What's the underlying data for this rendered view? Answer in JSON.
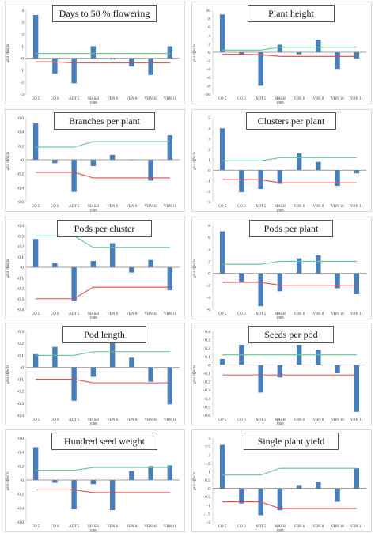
{
  "ylabel": "gca effects",
  "genotypes": [
    "CO 5",
    "CO 6",
    "ADT 5",
    "MASH 1008",
    "VBN 6",
    "VBN 8",
    "VBN 10",
    "VBN 11"
  ],
  "colors": {
    "bar": "#4a7ebb",
    "upper": "#5cc98a",
    "lower": "#e04848",
    "axis": "#7f7f7f"
  },
  "chart_data": [
    {
      "type": "bar",
      "title": "Days to 50 % flowering",
      "ylim": [
        -3,
        4
      ],
      "ticks": [
        4,
        3,
        2,
        1,
        0,
        -1,
        -2,
        -3
      ],
      "categories": [
        "CO 5",
        "CO 6",
        "ADT 5",
        "MASH 1008",
        "VBN 6",
        "VBN 8",
        "VBN 10",
        "VBN 11"
      ],
      "values": [
        3.6,
        -1.3,
        -2.1,
        1.0,
        -0.1,
        -0.7,
        -1.4,
        1.0
      ],
      "upper_line": [
        0.4,
        0.4,
        0.4,
        0.4,
        0.4,
        0.4,
        0.4,
        0.4
      ],
      "lower_line": [
        -0.3,
        -0.3,
        -0.4,
        -0.4,
        -0.4,
        -0.4,
        -0.4,
        -0.4
      ]
    },
    {
      "type": "bar",
      "title": "Plant height",
      "ylim": [
        -10,
        10
      ],
      "ticks": [
        10,
        8,
        6,
        4,
        2,
        0,
        -2,
        -4,
        -6,
        -8,
        -10
      ],
      "categories": [
        "CO 5",
        "CO 6",
        "ADT 5",
        "MASH 1008",
        "VBN 6",
        "VBN 8",
        "VBN 10",
        "VBN 11"
      ],
      "values": [
        9.0,
        -0.5,
        -8.0,
        1.8,
        -0.5,
        3.0,
        -4.0,
        -1.5
      ],
      "upper_line": [
        0.5,
        0.5,
        0.5,
        1.2,
        1.2,
        1.2,
        1.2,
        1.2
      ],
      "lower_line": [
        -0.5,
        -0.5,
        -0.6,
        -1.0,
        -1.0,
        -1.0,
        -1.0,
        -1.0
      ]
    },
    {
      "type": "bar",
      "title": "Branches per plant",
      "ylim": [
        -0.6,
        0.6
      ],
      "ticks": [
        0.6,
        0.4,
        0.2,
        0,
        -0.2,
        -0.4,
        -0.6
      ],
      "categories": [
        "CO 5",
        "CO 6",
        "ADT 5",
        "MASH 1008",
        "VBN 6",
        "VBN 8",
        "VBN 10",
        "VBN 11"
      ],
      "values": [
        0.52,
        -0.05,
        -0.46,
        -0.09,
        0.07,
        0.0,
        -0.3,
        0.35
      ],
      "upper_line": [
        0.18,
        0.18,
        0.18,
        0.26,
        0.26,
        0.26,
        0.26,
        0.26
      ],
      "lower_line": [
        -0.18,
        -0.18,
        -0.18,
        -0.26,
        -0.26,
        -0.26,
        -0.26,
        -0.26
      ]
    },
    {
      "type": "bar",
      "title": "Clusters per plant",
      "ylim": [
        -3,
        5
      ],
      "ticks": [
        5,
        4,
        3,
        2,
        1,
        0,
        -1,
        -2,
        -3
      ],
      "categories": [
        "CO 5",
        "CO 6",
        "ADT 5",
        "MASH 1008",
        "VBN 6",
        "VBN 8",
        "VBN 10",
        "VBN 11"
      ],
      "values": [
        4.0,
        -2.1,
        -1.8,
        -1.3,
        1.6,
        0.8,
        -1.5,
        -0.3
      ],
      "upper_line": [
        0.9,
        0.9,
        0.9,
        1.2,
        1.2,
        1.2,
        1.2,
        1.2
      ],
      "lower_line": [
        -0.9,
        -0.9,
        -0.9,
        -1.2,
        -1.2,
        -1.2,
        -1.2,
        -1.2
      ]
    },
    {
      "type": "bar",
      "title": "Pods per cluster",
      "ylim": [
        -0.4,
        0.4
      ],
      "ticks": [
        0.4,
        0.3,
        0.2,
        0.1,
        0,
        -0.1,
        -0.2,
        -0.3,
        -0.4
      ],
      "categories": [
        "CO 5",
        "CO 6",
        "ADT 5",
        "MASH 1008",
        "VBN 6",
        "VBN 8",
        "VBN 10",
        "VBN 11"
      ],
      "values": [
        0.27,
        0.04,
        -0.32,
        0.06,
        0.23,
        -0.05,
        0.07,
        -0.22
      ],
      "upper_line": [
        0.3,
        0.3,
        0.3,
        0.19,
        0.19,
        0.19,
        0.19,
        0.19
      ],
      "lower_line": [
        -0.3,
        -0.3,
        -0.3,
        -0.19,
        -0.19,
        -0.19,
        -0.19,
        -0.19
      ]
    },
    {
      "type": "bar",
      "title": "Pods per plant",
      "ylim": [
        -6,
        8
      ],
      "ticks": [
        8,
        6,
        4,
        2,
        0,
        -2,
        -4,
        -6
      ],
      "categories": [
        "CO 5",
        "CO 6",
        "ADT 5",
        "MASH 1008",
        "VBN 6",
        "VBN 8",
        "VBN 10",
        "VBN 11"
      ],
      "values": [
        7.0,
        -1.5,
        -5.5,
        -3.0,
        2.5,
        3.0,
        -2.5,
        -3.5
      ],
      "upper_line": [
        1.5,
        1.5,
        1.5,
        2.0,
        2.0,
        2.0,
        2.0,
        2.0
      ],
      "lower_line": [
        -1.5,
        -1.5,
        -1.5,
        -2.0,
        -2.0,
        -2.0,
        -2.0,
        -2.0
      ]
    },
    {
      "type": "bar",
      "title": "Pod length",
      "ylim": [
        -0.4,
        0.3
      ],
      "ticks": [
        0.3,
        0.2,
        0.1,
        0,
        -0.1,
        -0.2,
        -0.3,
        -0.4
      ],
      "categories": [
        "CO 5",
        "CO 6",
        "ADT 5",
        "MASH 1008",
        "VBN 6",
        "VBN 8",
        "VBN 10",
        "VBN 11"
      ],
      "values": [
        0.11,
        0.17,
        -0.28,
        -0.08,
        0.23,
        0.08,
        -0.12,
        -0.31
      ],
      "upper_line": [
        0.1,
        0.1,
        0.1,
        0.13,
        0.13,
        0.13,
        0.13,
        0.13
      ],
      "lower_line": [
        -0.1,
        -0.1,
        -0.1,
        -0.13,
        -0.13,
        -0.13,
        -0.13,
        -0.13
      ]
    },
    {
      "type": "bar",
      "title": "Seeds per pod",
      "ylim": [
        -0.6,
        0.4
      ],
      "ticks": [
        0.4,
        0.3,
        0.2,
        0.1,
        0,
        -0.1,
        -0.2,
        -0.3,
        -0.4,
        -0.5,
        -0.6
      ],
      "categories": [
        "CO 5",
        "CO 6",
        "ADT 5",
        "MASH 1008",
        "VBN 6",
        "VBN 8",
        "VBN 10",
        "VBN 11"
      ],
      "values": [
        0.07,
        0.24,
        -0.33,
        -0.15,
        0.24,
        0.18,
        -0.1,
        -0.56
      ],
      "upper_line": [
        0.12,
        0.12,
        0.12,
        0.12,
        0.12,
        0.12,
        0.12,
        0.12
      ],
      "lower_line": [
        -0.12,
        -0.12,
        -0.12,
        -0.12,
        -0.12,
        -0.12,
        -0.12,
        -0.12
      ]
    },
    {
      "type": "bar",
      "title": "Hundred seed weight",
      "ylim": [
        -0.6,
        0.6
      ],
      "ticks": [
        0.6,
        0.4,
        0.2,
        0,
        -0.2,
        -0.4,
        -0.6
      ],
      "categories": [
        "CO 5",
        "CO 6",
        "ADT 5",
        "MASH 1008",
        "VBN 6",
        "VBN 8",
        "VBN 10",
        "VBN 11"
      ],
      "values": [
        0.47,
        -0.04,
        -0.42,
        -0.06,
        -0.43,
        0.13,
        0.2,
        0.21
      ],
      "upper_line": [
        0.14,
        0.14,
        0.14,
        0.18,
        0.18,
        0.18,
        0.18,
        0.18
      ],
      "lower_line": [
        -0.14,
        -0.14,
        -0.14,
        -0.18,
        -0.18,
        -0.18,
        -0.18,
        -0.18
      ]
    },
    {
      "type": "bar",
      "title": "Single plant yield",
      "ylim": [
        -2,
        3
      ],
      "ticks": [
        3,
        2.5,
        2,
        1.5,
        1,
        0.5,
        0,
        -0.5,
        -1,
        -1.5,
        -2
      ],
      "categories": [
        "CO 5",
        "CO 6",
        "ADT 5",
        "MASH 1008",
        "VBN 6",
        "VBN 8",
        "VBN 10",
        "VBN 11"
      ],
      "values": [
        2.6,
        -0.9,
        -1.6,
        -1.3,
        0.2,
        0.4,
        -0.8,
        1.2
      ],
      "upper_line": [
        0.8,
        0.8,
        0.8,
        1.2,
        1.2,
        1.2,
        1.2,
        1.2
      ],
      "lower_line": [
        -0.8,
        -0.8,
        -0.8,
        -1.2,
        -1.2,
        -1.2,
        -1.2,
        -1.2
      ]
    }
  ]
}
